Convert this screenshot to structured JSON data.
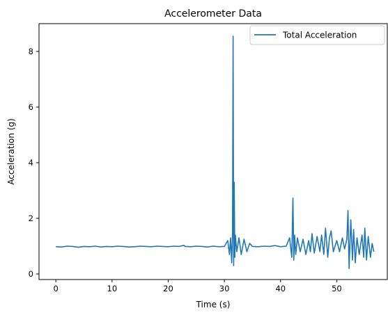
{
  "chart_data": {
    "type": "line",
    "title": "Accelerometer Data",
    "xlabel": "Time (s)",
    "ylabel": "Acceleration (g)",
    "xlim": [
      -3,
      59
    ],
    "ylim": [
      -0.2,
      9.0
    ],
    "xticks": [
      0,
      10,
      20,
      30,
      40,
      50
    ],
    "yticks": [
      0,
      2,
      4,
      6,
      8
    ],
    "grid": false,
    "legend_position": "top-right",
    "series": [
      {
        "name": "Total Acceleration",
        "color": "#1f77b4",
        "x": [
          0,
          1,
          2,
          3,
          4,
          5,
          6,
          7,
          8,
          9,
          10,
          11,
          12,
          13,
          14,
          15,
          16,
          17,
          18,
          19,
          20,
          21,
          22,
          22.8,
          23,
          24,
          25,
          26,
          27,
          28,
          29,
          30,
          30.6,
          30.9,
          31.1,
          31.3,
          31.45,
          31.55,
          31.65,
          31.75,
          31.85,
          31.95,
          32.2,
          32.6,
          33,
          33.5,
          34,
          34.5,
          35,
          36,
          37,
          38,
          39,
          40,
          41,
          41.6,
          42.0,
          42.2,
          42.35,
          42.5,
          42.7,
          43.0,
          43.5,
          44,
          44.5,
          45,
          45.3,
          45.6,
          46,
          46.5,
          47,
          47.3,
          47.7,
          48,
          48.4,
          48.7,
          49.0,
          49.4,
          50,
          50.5,
          51,
          51.4,
          51.8,
          52.0,
          52.2,
          52.5,
          52.8,
          53.0,
          53.3,
          53.6,
          54,
          54.5,
          54.8,
          55,
          55.3,
          55.6,
          56,
          56.3,
          56.6
        ],
        "y": [
          0.98,
          0.97,
          1.0,
          0.99,
          0.96,
          0.99,
          0.98,
          1.0,
          0.97,
          0.99,
          0.98,
          1.0,
          0.99,
          0.97,
          0.98,
          1.0,
          0.99,
          0.98,
          1.0,
          0.99,
          0.98,
          1.0,
          0.99,
          1.03,
          0.99,
          0.98,
          1.0,
          0.99,
          0.97,
          1.0,
          0.98,
          0.99,
          1.2,
          0.7,
          1.3,
          0.4,
          1.5,
          8.55,
          0.3,
          3.3,
          0.6,
          1.4,
          0.8,
          1.3,
          0.7,
          1.25,
          0.8,
          1.1,
          0.99,
          0.98,
          1.0,
          0.99,
          1.02,
          0.98,
          1.0,
          1.3,
          0.6,
          2.73,
          0.5,
          1.4,
          0.7,
          1.3,
          0.8,
          1.25,
          0.7,
          1.2,
          0.8,
          1.45,
          0.75,
          1.35,
          0.8,
          1.4,
          0.7,
          1.65,
          0.6,
          1.3,
          1.55,
          0.8,
          1.2,
          0.8,
          1.3,
          0.9,
          1.25,
          2.28,
          0.2,
          1.95,
          0.5,
          1.6,
          0.4,
          1.3,
          0.7,
          1.4,
          0.6,
          1.65,
          0.5,
          1.35,
          0.6,
          1.1,
          0.8
        ]
      }
    ]
  }
}
